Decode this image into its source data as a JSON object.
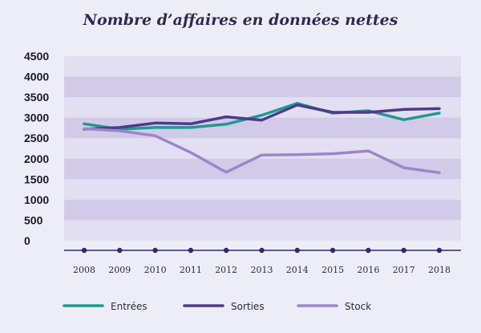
{
  "chart_data": {
    "type": "line",
    "title": "Nombre d’affaires en données nettes",
    "xlabel": "",
    "ylabel": "",
    "categories": [
      "2008",
      "2009",
      "2010",
      "2011",
      "2012",
      "2013",
      "2014",
      "2015",
      "2016",
      "2017",
      "2018"
    ],
    "ylim": [
      0,
      4500
    ],
    "yticks": [
      0,
      500,
      1000,
      1500,
      2000,
      2500,
      3000,
      3500,
      4000,
      4500
    ],
    "grid": "horizontal bands",
    "legend_position": "bottom",
    "series": [
      {
        "name": "Entrées",
        "color": "#1f9a92",
        "values": [
          2850,
          2720,
          2760,
          2760,
          2840,
          3060,
          3350,
          3110,
          3170,
          2950,
          3110
        ]
      },
      {
        "name": "Sorties",
        "color": "#4f3a8b",
        "values": [
          2720,
          2760,
          2870,
          2850,
          3020,
          2940,
          3310,
          3130,
          3130,
          3200,
          3220
        ]
      },
      {
        "name": "Stock",
        "color": "#9a87c8",
        "values": [
          2730,
          2680,
          2560,
          2150,
          1670,
          2090,
          2100,
          2120,
          2190,
          1780,
          1660
        ]
      }
    ]
  }
}
